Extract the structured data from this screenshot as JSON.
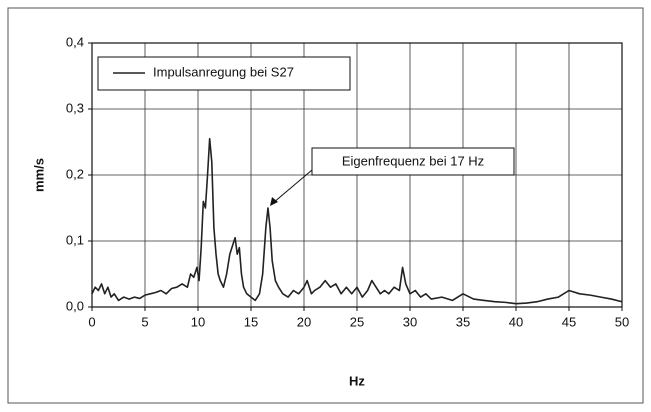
{
  "chart_data": {
    "type": "line",
    "x": [
      0,
      0.3,
      0.6,
      0.9,
      1.2,
      1.5,
      1.8,
      2.1,
      2.5,
      3,
      3.5,
      4,
      4.5,
      5,
      5.5,
      6,
      6.5,
      7,
      7.5,
      8,
      8.5,
      9,
      9.3,
      9.6,
      9.9,
      10.1,
      10.3,
      10.5,
      10.7,
      10.9,
      11.1,
      11.3,
      11.5,
      11.7,
      11.9,
      12.1,
      12.4,
      12.7,
      13.0,
      13.3,
      13.5,
      13.7,
      13.9,
      14.1,
      14.3,
      14.6,
      15,
      15.4,
      15.8,
      16.1,
      16.4,
      16.6,
      16.8,
      17.0,
      17.3,
      17.6,
      18,
      18.5,
      19,
      19.5,
      20,
      20.3,
      20.7,
      21,
      21.5,
      22,
      22.5,
      23,
      23.5,
      24,
      24.5,
      25,
      25.5,
      26,
      26.4,
      26.8,
      27.2,
      27.6,
      28,
      28.5,
      29,
      29.3,
      29.6,
      30,
      30.5,
      31,
      31.5,
      32,
      33,
      34,
      35,
      36,
      37,
      38,
      39,
      40,
      41,
      42,
      43,
      44,
      45,
      46,
      47,
      48,
      49,
      50
    ],
    "series": [
      {
        "name": "Impulsanregung bei S27",
        "color": "#222222",
        "values": [
          0.02,
          0.03,
          0.025,
          0.035,
          0.02,
          0.03,
          0.015,
          0.02,
          0.01,
          0.015,
          0.012,
          0.015,
          0.013,
          0.018,
          0.02,
          0.022,
          0.025,
          0.02,
          0.028,
          0.03,
          0.035,
          0.03,
          0.05,
          0.045,
          0.06,
          0.04,
          0.09,
          0.16,
          0.15,
          0.2,
          0.255,
          0.22,
          0.12,
          0.08,
          0.05,
          0.04,
          0.03,
          0.05,
          0.08,
          0.095,
          0.105,
          0.08,
          0.09,
          0.05,
          0.03,
          0.02,
          0.015,
          0.01,
          0.02,
          0.05,
          0.12,
          0.15,
          0.12,
          0.07,
          0.04,
          0.03,
          0.02,
          0.015,
          0.025,
          0.02,
          0.03,
          0.04,
          0.02,
          0.025,
          0.03,
          0.04,
          0.03,
          0.035,
          0.02,
          0.03,
          0.02,
          0.03,
          0.015,
          0.025,
          0.04,
          0.03,
          0.02,
          0.025,
          0.02,
          0.03,
          0.025,
          0.06,
          0.035,
          0.02,
          0.025,
          0.015,
          0.02,
          0.012,
          0.015,
          0.01,
          0.02,
          0.012,
          0.01,
          0.008,
          0.007,
          0.005,
          0.006,
          0.008,
          0.012,
          0.015,
          0.025,
          0.02,
          0.018,
          0.015,
          0.012,
          0.008
        ]
      }
    ],
    "xlabel": "Hz",
    "ylabel": "mm/s",
    "xlim": [
      0,
      50
    ],
    "xticks": [
      0,
      5,
      10,
      15,
      20,
      25,
      30,
      35,
      40,
      45,
      50
    ],
    "ylim": [
      0,
      0.4
    ],
    "yticks": [
      {
        "value": 0,
        "label": "0,0"
      },
      {
        "value": 0.1,
        "label": "0,1"
      },
      {
        "value": 0.2,
        "label": "0,2"
      },
      {
        "value": 0.3,
        "label": "0,3"
      },
      {
        "value": 0.4,
        "label": "0,4"
      }
    ],
    "grid": true,
    "legend": "upper left",
    "annotation": "Eigenfrequenz bei 17 Hz"
  }
}
